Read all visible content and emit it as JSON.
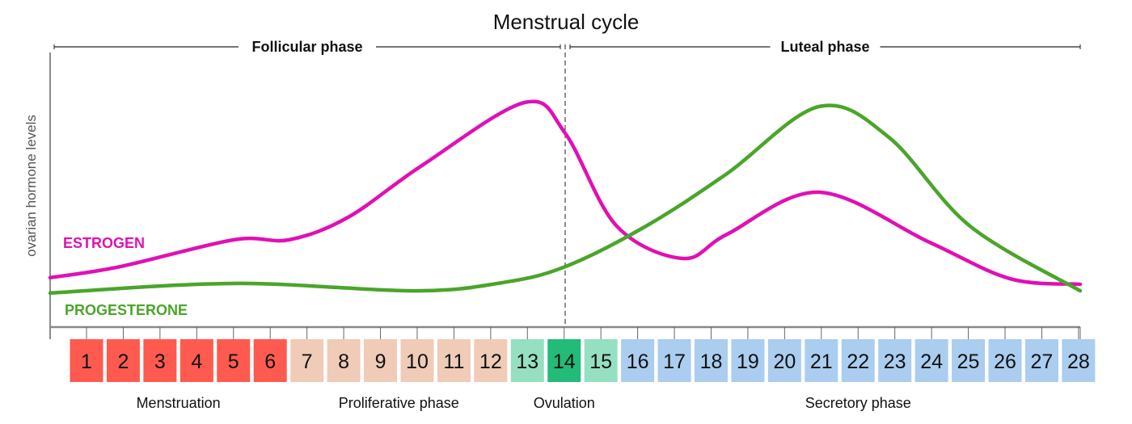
{
  "chart_data": {
    "type": "line",
    "title": "Menstrual cycle",
    "ylabel": "ovarian hormone levels",
    "xlim": [
      0,
      28
    ],
    "ylim": [
      0,
      100
    ],
    "grid": false,
    "phases": [
      {
        "label": "Follicular phase",
        "from_day": 0,
        "to_day": 14
      },
      {
        "label": "Luteal phase",
        "from_day": 14,
        "to_day": 28
      }
    ],
    "ovulation_marker_day": 14,
    "series": [
      {
        "name": "ESTROGEN",
        "color": "#e010b4",
        "x": [
          0,
          1.9,
          5.0,
          6.5,
          8.1,
          10.1,
          12.9,
          14.0,
          15.4,
          17.2,
          18.4,
          20.9,
          23.9,
          26.1,
          28
        ],
        "y": [
          18,
          22,
          31.8,
          31.8,
          40,
          58.8,
          81.8,
          70.6,
          36.8,
          25,
          33.8,
          49.1,
          30.9,
          17.6,
          15.6
        ]
      },
      {
        "name": "PROGESTERONE",
        "color": "#4aa52a",
        "x": [
          0,
          5.0,
          9.9,
          12.3,
          14.0,
          16.2,
          18.4,
          20.9,
          22.8,
          25.0,
          28
        ],
        "y": [
          12.4,
          15.9,
          13.2,
          16.2,
          22,
          36.8,
          55.9,
          80.3,
          69.1,
          36.8,
          13.2
        ]
      }
    ],
    "days": [
      1,
      2,
      3,
      4,
      5,
      6,
      7,
      8,
      9,
      10,
      11,
      12,
      13,
      14,
      15,
      16,
      17,
      18,
      19,
      20,
      21,
      22,
      23,
      24,
      25,
      26,
      27,
      28
    ],
    "day_stages": [
      {
        "label": "Menstruation",
        "days": [
          1,
          6
        ],
        "color": "#fe5a4f"
      },
      {
        "label": "Proliferative phase",
        "days": [
          7,
          12
        ],
        "color": "#efcbb8"
      },
      {
        "label": "Ovulation",
        "days": [
          13,
          15
        ],
        "color": "#94e0c0",
        "peak_color": "#22bb77",
        "peak_day": 14
      },
      {
        "label": "Secretory phase",
        "days": [
          16,
          28
        ],
        "color": "#aacdf0"
      }
    ]
  }
}
